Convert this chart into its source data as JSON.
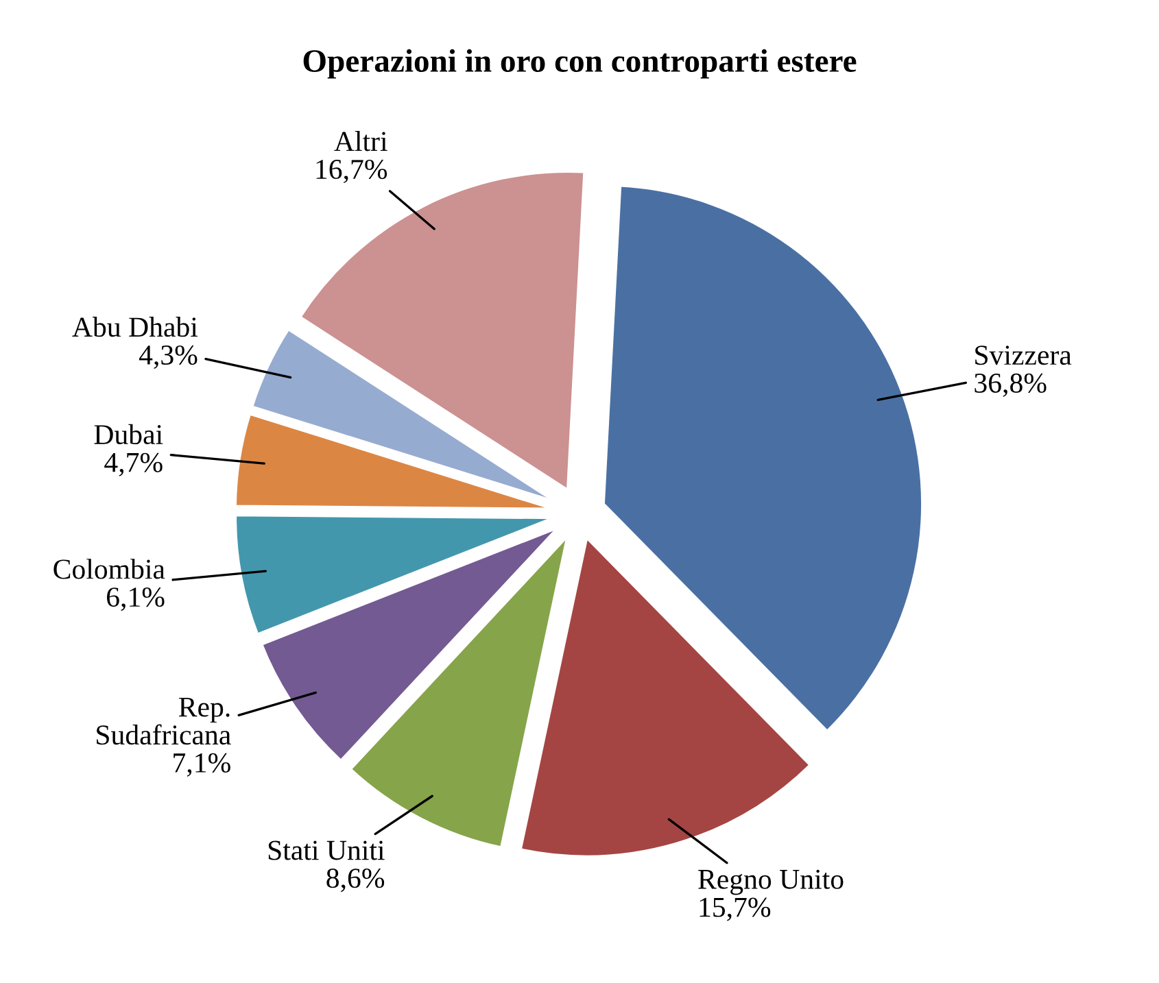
{
  "chart_data": {
    "type": "pie",
    "title": "Operazioni in oro con controparti estere",
    "categories": [
      "Svizzera",
      "Regno Unito",
      "Stati Uniti",
      "Rep.\nSudafricana",
      "Colombia",
      "Dubai",
      "Abu Dhabi",
      "Altri"
    ],
    "values": [
      36.8,
      15.7,
      8.6,
      7.1,
      6.1,
      4.7,
      4.3,
      16.7
    ],
    "value_labels": [
      "36,8%",
      "15,7%",
      "8,6%",
      "7,1%",
      "6,1%",
      "4,7%",
      "4,3%",
      "16,7%"
    ],
    "colors": [
      "#4a70a3",
      "#a54543",
      "#86a44a",
      "#735a92",
      "#4397ad",
      "#dc8644",
      "#96abd0",
      "#cc9191"
    ]
  }
}
